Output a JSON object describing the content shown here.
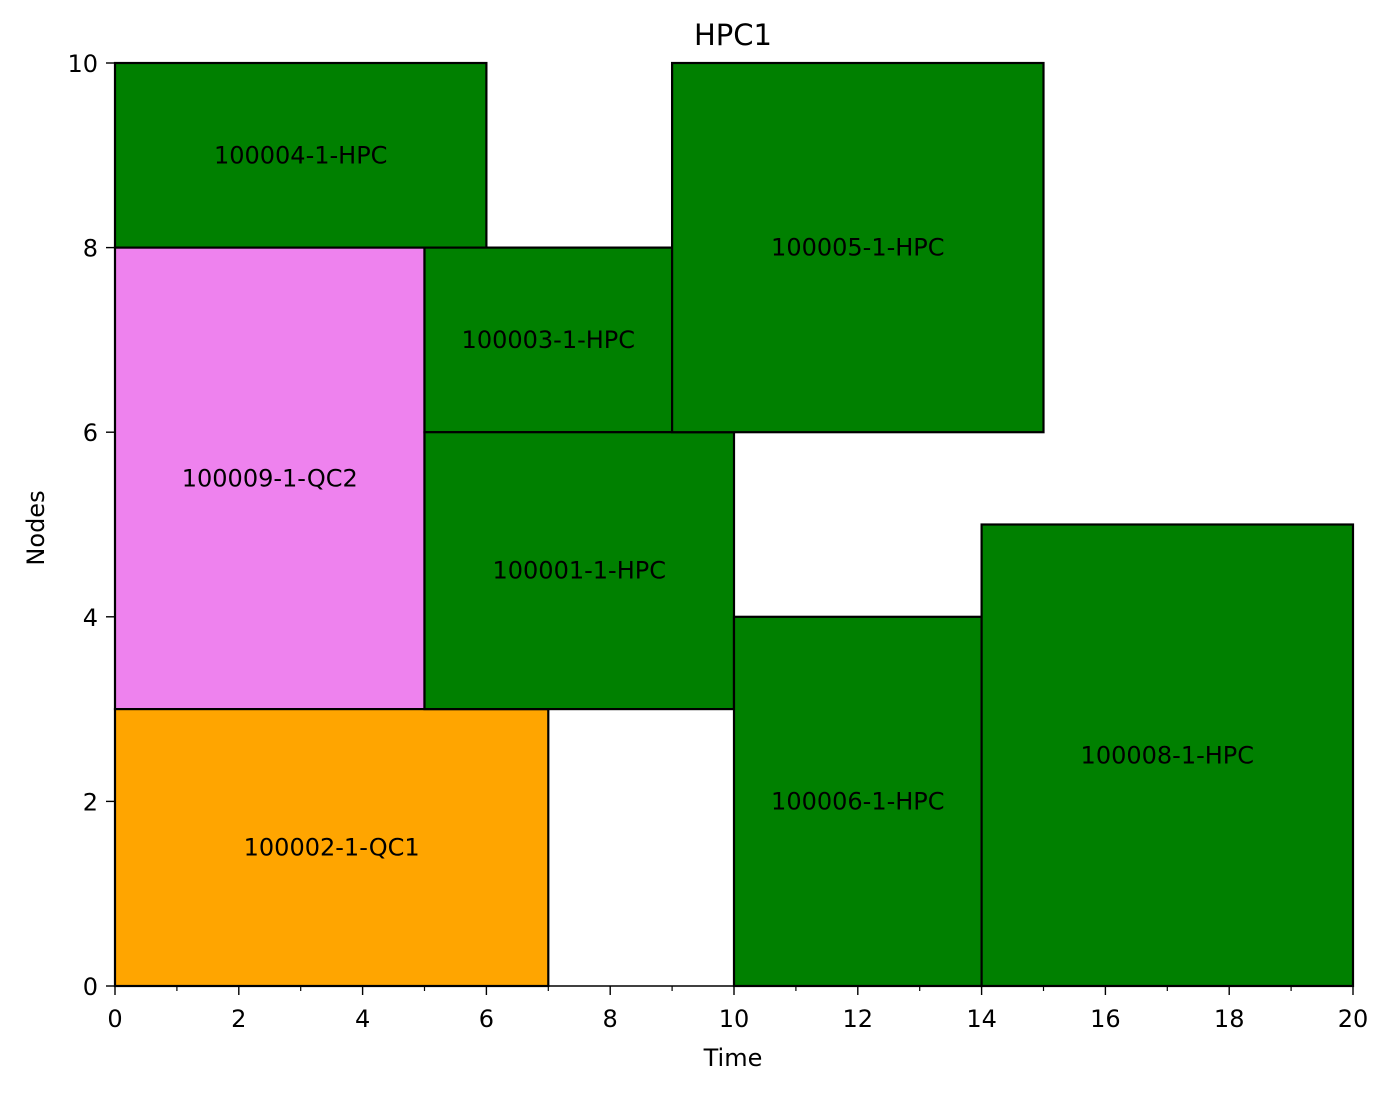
{
  "chart_data": {
    "type": "gantt",
    "title": "HPC1",
    "xlabel": "Time",
    "ylabel": "Nodes",
    "xlim": [
      0,
      20
    ],
    "ylim": [
      0,
      10
    ],
    "xticks": [
      0,
      2,
      4,
      6,
      8,
      10,
      12,
      14,
      16,
      18,
      20
    ],
    "yticks": [
      0,
      2,
      4,
      6,
      8,
      10
    ],
    "x_minor_step": 1,
    "grid": false,
    "colors": {
      "HPC": "#008000",
      "QC1": "#ffa500",
      "QC2": "#ee82ee",
      "edge": "#000000"
    },
    "jobs": [
      {
        "label": "100004-1-HPC",
        "start": 0,
        "end": 6,
        "node_start": 8,
        "node_end": 10,
        "color": "#008000"
      },
      {
        "label": "100009-1-QC2",
        "start": 0,
        "end": 5,
        "node_start": 3,
        "node_end": 8,
        "color": "#ee82ee"
      },
      {
        "label": "100002-1-QC1",
        "start": 0,
        "end": 7,
        "node_start": 0,
        "node_end": 3,
        "color": "#ffa500"
      },
      {
        "label": "100003-1-HPC",
        "start": 5,
        "end": 9,
        "node_start": 6,
        "node_end": 8,
        "color": "#008000"
      },
      {
        "label": "100001-1-HPC",
        "start": 5,
        "end": 10,
        "node_start": 3,
        "node_end": 6,
        "color": "#008000"
      },
      {
        "label": "100005-1-HPC",
        "start": 9,
        "end": 15,
        "node_start": 6,
        "node_end": 10,
        "color": "#008000"
      },
      {
        "label": "100006-1-HPC",
        "start": 10,
        "end": 14,
        "node_start": 0,
        "node_end": 4,
        "color": "#008000"
      },
      {
        "label": "100008-1-HPC",
        "start": 14,
        "end": 20,
        "node_start": 0,
        "node_end": 5,
        "color": "#008000"
      }
    ]
  }
}
